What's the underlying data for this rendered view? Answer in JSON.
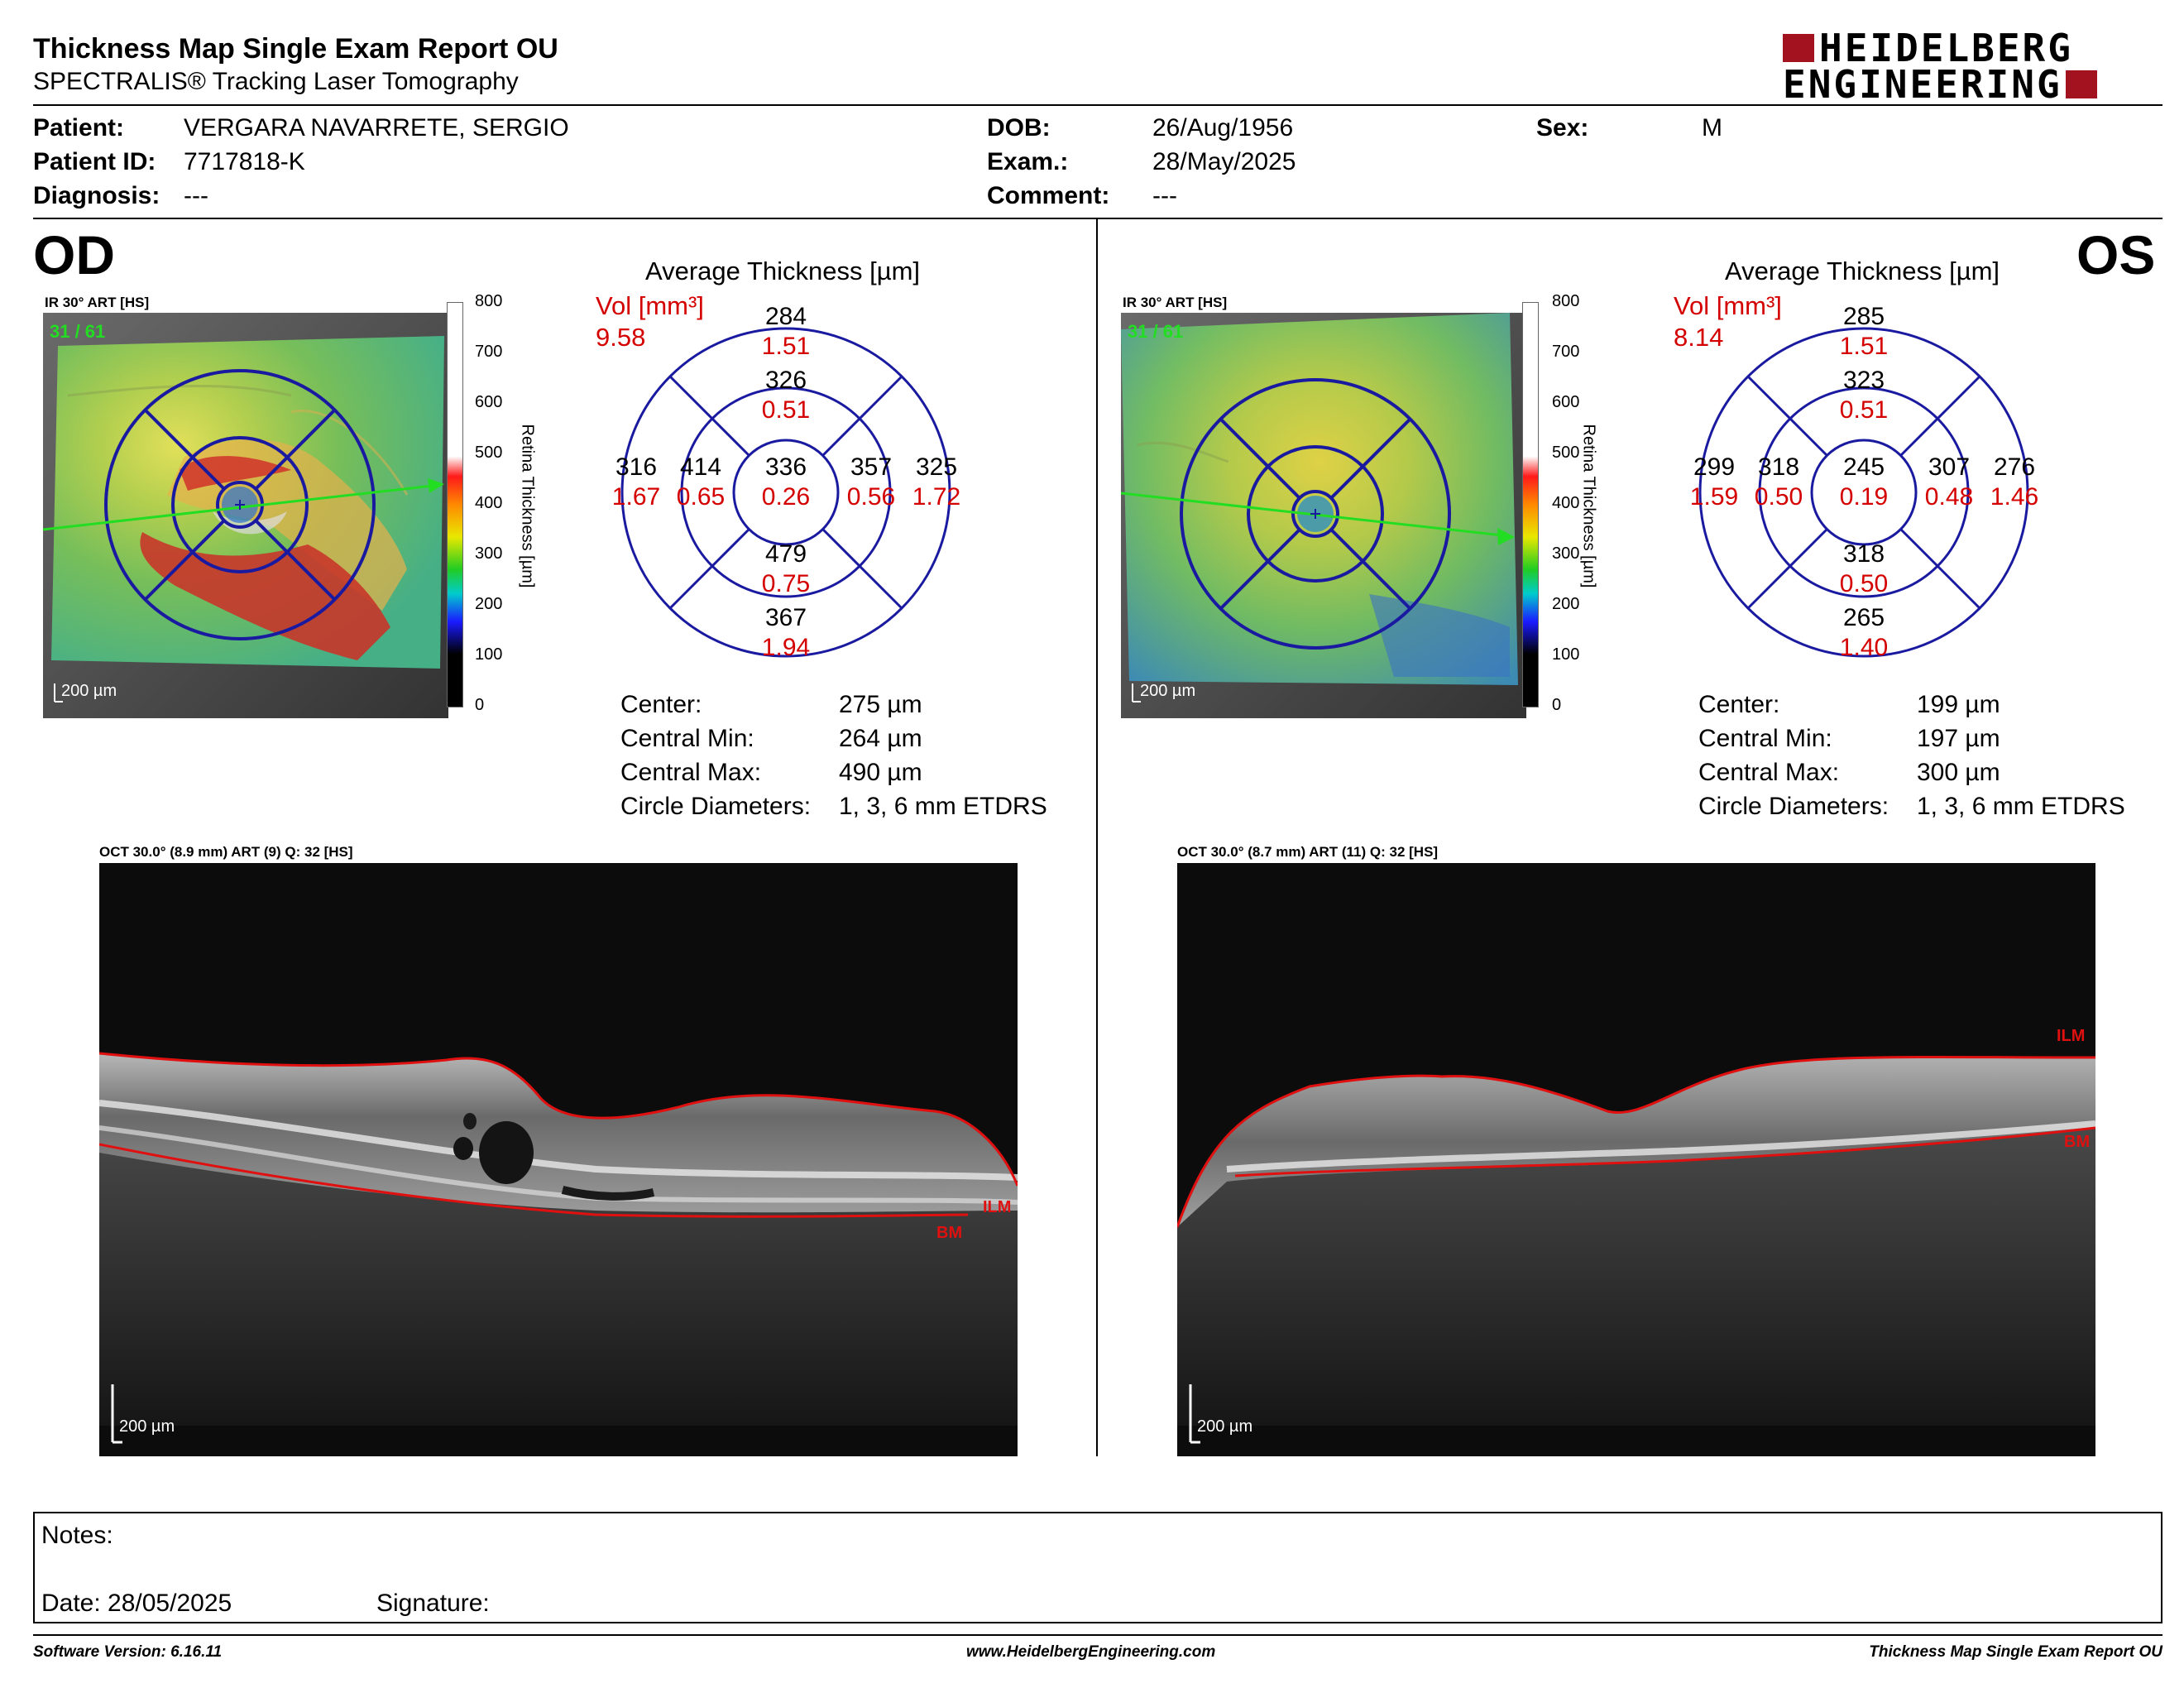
{
  "report": {
    "title": "Thickness Map Single Exam Report OU",
    "subtitle": "SPECTRALIS® Tracking Laser Tomography",
    "logo_line1": "HEIDELBERG",
    "logo_line2": "ENGINEERING"
  },
  "patient": {
    "patient_label": "Patient:",
    "patient_value": "VERGARA NAVARRETE, SERGIO",
    "id_label": "Patient ID:",
    "id_value": "7717818-K",
    "diagnosis_label": "Diagnosis:",
    "diagnosis_value": "---",
    "dob_label": "DOB:",
    "dob_value": "26/Aug/1956",
    "exam_label": "Exam.:",
    "exam_value": "28/May/2025",
    "comment_label": "Comment:",
    "comment_value": "---",
    "sex_label": "Sex:",
    "sex_value": "M"
  },
  "scale": {
    "ticks": [
      "800",
      "700",
      "600",
      "500",
      "400",
      "300",
      "200",
      "100",
      "0"
    ],
    "label": "Retina Thickness [µm]"
  },
  "od": {
    "eye_label": "OD",
    "fundus_label": "IR 30° ART [HS]",
    "frame_label": "31 / 61",
    "fundus_scale": "200 µm",
    "avg_title": "Average Thickness [µm]",
    "vol_label": "Vol [mm³]",
    "vol_total": "9.58",
    "sectors": {
      "center": {
        "t": "336",
        "v": "0.26"
      },
      "inner_sup": {
        "t": "326",
        "v": "0.51"
      },
      "inner_nas": {
        "t": "414",
        "v": "0.65"
      },
      "inner_inf": {
        "t": "479",
        "v": "0.75"
      },
      "inner_tem": {
        "t": "357",
        "v": "0.56"
      },
      "outer_sup": {
        "t": "284",
        "v": "1.51"
      },
      "outer_nas": {
        "t": "316",
        "v": "1.67"
      },
      "outer_inf": {
        "t": "367",
        "v": "1.94"
      },
      "outer_tem": {
        "t": "325",
        "v": "1.72"
      }
    },
    "stats": {
      "center_label": "Center:",
      "center_value": "275 µm",
      "min_label": "Central Min:",
      "min_value": "264 µm",
      "max_label": "Central Max:",
      "max_value": "490 µm",
      "diam_label": "Circle Diameters:",
      "diam_value": "1, 3, 6 mm ETDRS"
    },
    "oct_label": "OCT 30.0° (8.9 mm) ART (9) Q: 32 [HS]",
    "oct_scale": "200 µm",
    "ilm": "ILM",
    "bm": "BM"
  },
  "os": {
    "eye_label": "OS",
    "fundus_label": "IR 30° ART [HS]",
    "frame_label": "31 / 61",
    "fundus_scale": "200 µm",
    "avg_title": "Average Thickness [µm]",
    "vol_label": "Vol [mm³]",
    "vol_total": "8.14",
    "sectors": {
      "center": {
        "t": "245",
        "v": "0.19"
      },
      "inner_sup": {
        "t": "323",
        "v": "0.51"
      },
      "inner_nas": {
        "t": "318",
        "v": "0.50"
      },
      "inner_inf": {
        "t": "318",
        "v": "0.50"
      },
      "inner_tem": {
        "t": "307",
        "v": "0.48"
      },
      "outer_sup": {
        "t": "285",
        "v": "1.51"
      },
      "outer_nas": {
        "t": "299",
        "v": "1.59"
      },
      "outer_inf": {
        "t": "265",
        "v": "1.40"
      },
      "outer_tem": {
        "t": "276",
        "v": "1.46"
      }
    },
    "stats": {
      "center_label": "Center:",
      "center_value": "199 µm",
      "min_label": "Central Min:",
      "min_value": "197 µm",
      "max_label": "Central Max:",
      "max_value": "300 µm",
      "diam_label": "Circle Diameters:",
      "diam_value": "1, 3, 6 mm ETDRS"
    },
    "oct_label": "OCT 30.0° (8.7 mm) ART (11) Q: 32 [HS]",
    "oct_scale": "200 µm",
    "ilm": "ILM",
    "bm": "BM"
  },
  "notes": {
    "notes_label": "Notes:",
    "date_label": "Date: 28/05/2025",
    "signature_label": "Signature:"
  },
  "footer": {
    "software": "Software Version: 6.16.11",
    "website": "www.HeidelbergEngineering.com",
    "report_name": "Thickness Map Single Exam Report OU"
  },
  "colors": {
    "accent_red": "#d40000",
    "logo_red": "#a3121f",
    "grid_blue": "#1a1aa0"
  }
}
